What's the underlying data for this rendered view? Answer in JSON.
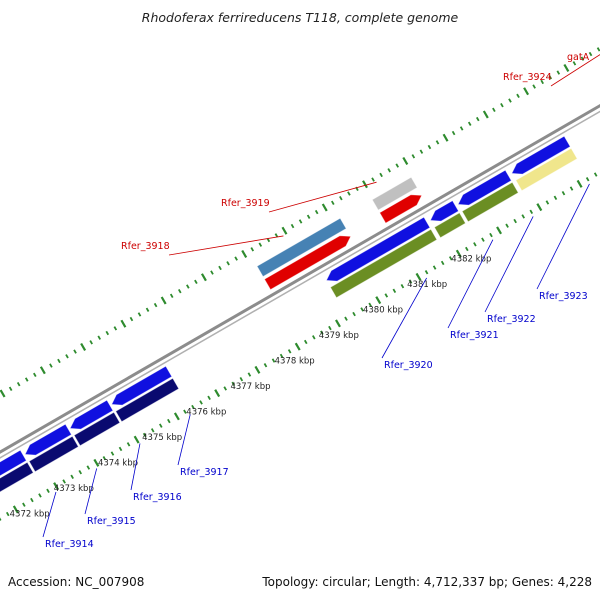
{
  "title": "Rhodoferax ferrireducens T118, complete genome",
  "footer": {
    "accession": "Accession: NC_007908",
    "summary": "Topology: circular; Length: 4,712,337 bp; Genes: 4,228"
  },
  "colors": {
    "backbone": "#8c8c8c",
    "tick": "#2e8b2e",
    "label_forward": "#cc0000",
    "label_reverse": "#0000cc",
    "label_line_forward": "#cc0000",
    "label_line_reverse": "#0000cc"
  },
  "scale_ticks": [
    {
      "label": "4372 kbp"
    },
    {
      "label": "4373 kbp"
    },
    {
      "label": "4374 kbp"
    },
    {
      "label": "4375 kbp"
    },
    {
      "label": "4376 kbp"
    },
    {
      "label": "4377 kbp"
    },
    {
      "label": "4378 kbp"
    },
    {
      "label": "4379 kbp"
    },
    {
      "label": "4380 kbp"
    },
    {
      "label": "4381 kbp"
    },
    {
      "label": "4382 kbp"
    }
  ],
  "genes_reverse": [
    {
      "label": "Rfer_3914",
      "arrow_color": "#1010e0",
      "feature_color": "#0a0a70"
    },
    {
      "label": "Rfer_3915",
      "arrow_color": "#1010e0",
      "feature_color": "#0a0a70"
    },
    {
      "label": "Rfer_3916",
      "arrow_color": "#1010e0",
      "feature_color": "#0a0a70"
    },
    {
      "label": "Rfer_3917",
      "arrow_color": "#1010e0",
      "feature_color": "#0a0a70"
    },
    {
      "label": "Rfer_3920",
      "arrow_color": "#1010e0",
      "feature_color": "#6b8e23"
    },
    {
      "label": "Rfer_3921",
      "arrow_color": "#1010e0",
      "feature_color": "#6b8e23"
    },
    {
      "label": "Rfer_3922",
      "arrow_color": "#1010e0",
      "feature_color": "#6b8e23"
    },
    {
      "label": "Rfer_3923",
      "arrow_color": "#1010e0",
      "feature_color": "#f0e68c"
    }
  ],
  "genes_forward": [
    {
      "label": "Rfer_3918",
      "arrow_color": "#e00000",
      "feature_color": "#4682b4"
    },
    {
      "label": "Rfer_3919",
      "arrow_color": "#e00000",
      "feature_color": "#c0c0c0"
    },
    {
      "label": "Rfer_3924",
      "arrow_color": "#e00000",
      "feature_color": "#f08080"
    },
    {
      "label": "gatA",
      "arrow_color": "#e00000",
      "feature_color": "#f08080"
    }
  ]
}
